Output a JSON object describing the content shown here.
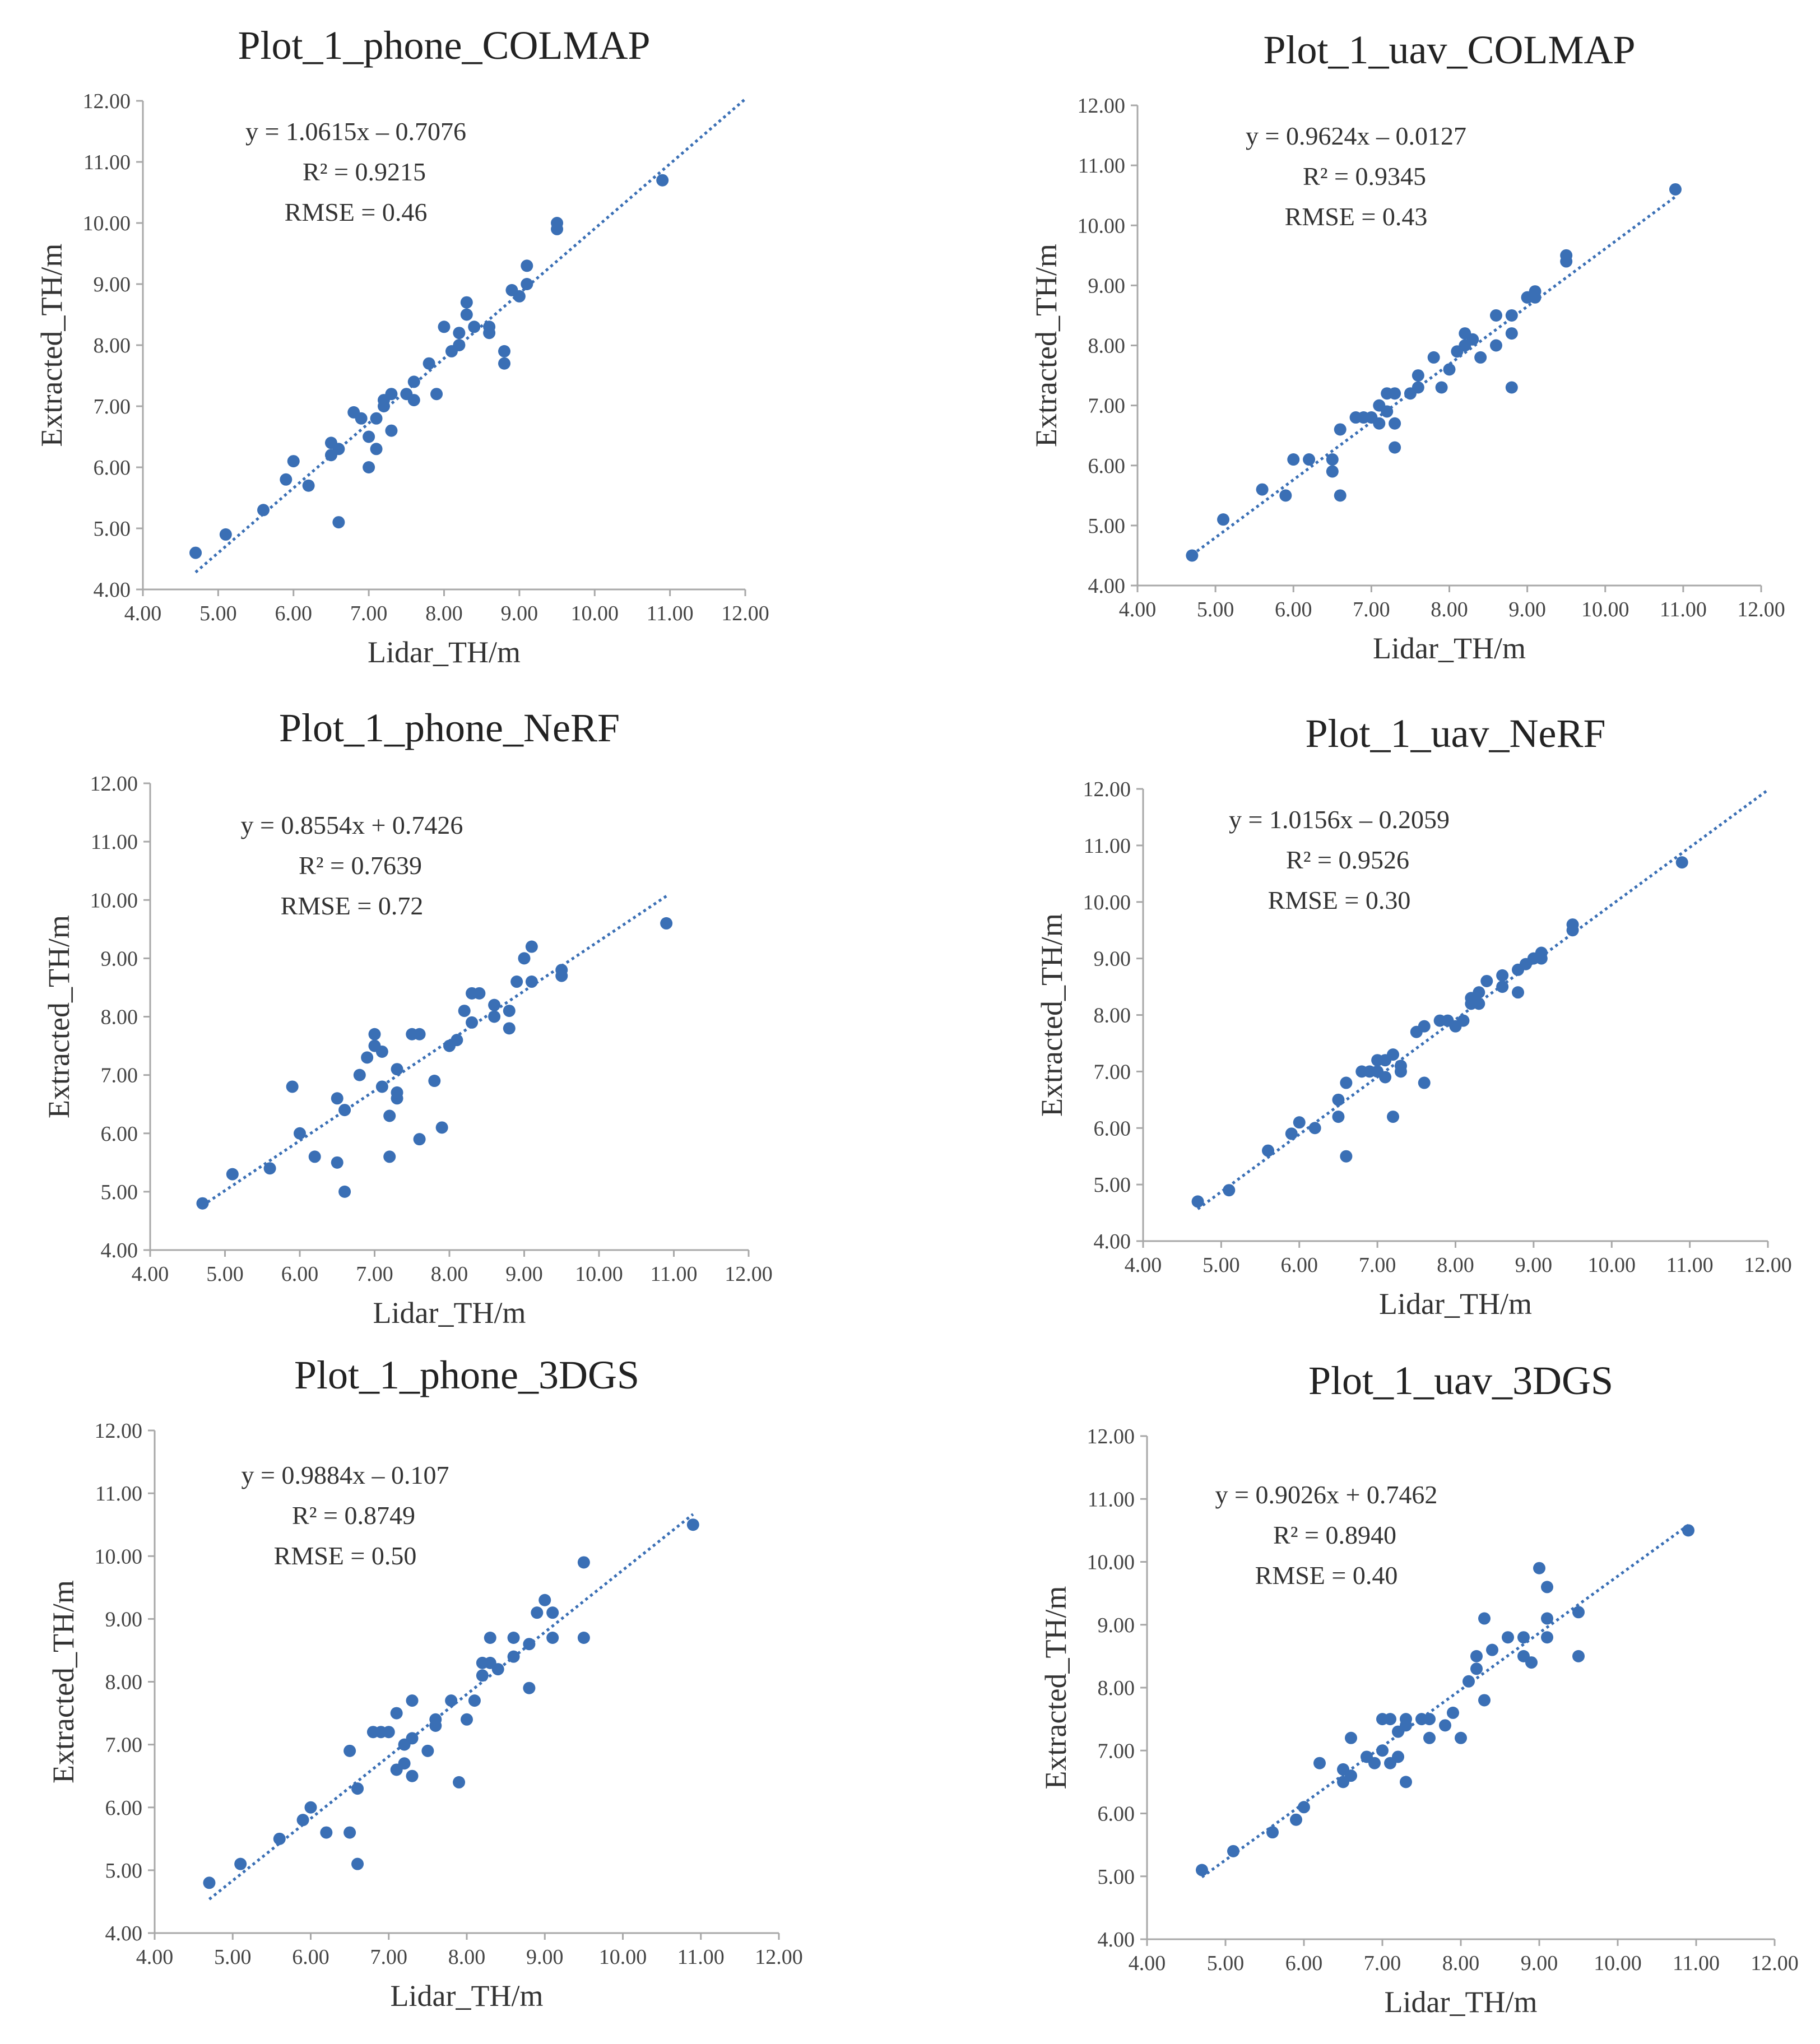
{
  "chart_data": [
    {
      "id": "phone_colmap",
      "type": "scatter",
      "title": "Plot_1_phone_COLMAP",
      "xlabel": "Lidar_TH/m",
      "ylabel": "Extracted_TH/m",
      "xlim": [
        4,
        12
      ],
      "ylim": [
        4,
        12
      ],
      "xticks": [
        "4.00",
        "5.00",
        "6.00",
        "7.00",
        "8.00",
        "9.00",
        "10.00",
        "11.00",
        "12.00"
      ],
      "yticks": [
        "4.00",
        "5.00",
        "6.00",
        "7.00",
        "8.00",
        "9.00",
        "10.00",
        "11.00",
        "12.00"
      ],
      "equation": "y = 1.0615x – 0.7076",
      "r2": "R² = 0.9215",
      "rmse": "RMSE = 0.46",
      "trendline": {
        "slope": 1.0615,
        "intercept": -0.7076,
        "x_range": [
          4.7,
          12
        ]
      },
      "points": [
        [
          4.7,
          4.6
        ],
        [
          5.1,
          4.9
        ],
        [
          5.6,
          5.3
        ],
        [
          5.9,
          5.8
        ],
        [
          6.0,
          6.1
        ],
        [
          6.2,
          5.7
        ],
        [
          6.5,
          6.4
        ],
        [
          6.5,
          6.2
        ],
        [
          6.6,
          6.3
        ],
        [
          6.6,
          5.1
        ],
        [
          6.8,
          6.9
        ],
        [
          6.9,
          6.8
        ],
        [
          7.0,
          6.5
        ],
        [
          7.0,
          6.0
        ],
        [
          7.1,
          6.8
        ],
        [
          7.1,
          6.3
        ],
        [
          7.2,
          7.0
        ],
        [
          7.2,
          7.1
        ],
        [
          7.3,
          7.2
        ],
        [
          7.3,
          6.6
        ],
        [
          7.5,
          7.2
        ],
        [
          7.6,
          7.4
        ],
        [
          7.6,
          7.1
        ],
        [
          7.8,
          7.7
        ],
        [
          7.9,
          7.2
        ],
        [
          8.0,
          8.3
        ],
        [
          8.1,
          7.9
        ],
        [
          8.2,
          8.0
        ],
        [
          8.2,
          8.2
        ],
        [
          8.3,
          8.5
        ],
        [
          8.3,
          8.7
        ],
        [
          8.4,
          8.3
        ],
        [
          8.6,
          8.3
        ],
        [
          8.6,
          8.2
        ],
        [
          8.8,
          7.9
        ],
        [
          8.8,
          7.7
        ],
        [
          8.9,
          8.9
        ],
        [
          9.0,
          8.8
        ],
        [
          9.1,
          9.0
        ],
        [
          9.1,
          9.3
        ],
        [
          9.5,
          10.0
        ],
        [
          9.5,
          9.9
        ],
        [
          10.9,
          10.7
        ]
      ]
    },
    {
      "id": "uav_colmap",
      "type": "scatter",
      "title": "Plot_1_uav_COLMAP",
      "xlabel": "Lidar_TH/m",
      "ylabel": "Extracted_TH/m",
      "xlim": [
        4,
        12
      ],
      "ylim": [
        4,
        12
      ],
      "xticks": [
        "4.00",
        "5.00",
        "6.00",
        "7.00",
        "8.00",
        "9.00",
        "10.00",
        "11.00",
        "12.00"
      ],
      "yticks": [
        "4.00",
        "5.00",
        "6.00",
        "7.00",
        "8.00",
        "9.00",
        "10.00",
        "11.00",
        "12.00"
      ],
      "equation": "y = 0.9624x – 0.0127",
      "r2": "R² = 0.9345",
      "rmse": "RMSE = 0.43",
      "trendline": {
        "slope": 0.9624,
        "intercept": -0.0127,
        "x_range": [
          4.7,
          10.9
        ]
      },
      "points": [
        [
          4.7,
          4.5
        ],
        [
          5.1,
          5.1
        ],
        [
          5.6,
          5.6
        ],
        [
          5.9,
          5.5
        ],
        [
          6.0,
          6.1
        ],
        [
          6.2,
          6.1
        ],
        [
          6.5,
          6.1
        ],
        [
          6.5,
          5.9
        ],
        [
          6.6,
          6.6
        ],
        [
          6.6,
          5.5
        ],
        [
          6.8,
          6.8
        ],
        [
          6.9,
          6.8
        ],
        [
          7.0,
          6.8
        ],
        [
          7.1,
          7.0
        ],
        [
          7.1,
          6.7
        ],
        [
          7.2,
          7.2
        ],
        [
          7.2,
          6.9
        ],
        [
          7.3,
          7.2
        ],
        [
          7.3,
          6.7
        ],
        [
          7.3,
          6.3
        ],
        [
          7.5,
          7.2
        ],
        [
          7.6,
          7.5
        ],
        [
          7.6,
          7.3
        ],
        [
          7.8,
          7.8
        ],
        [
          7.9,
          7.3
        ],
        [
          8.0,
          7.6
        ],
        [
          8.1,
          7.9
        ],
        [
          8.2,
          8.0
        ],
        [
          8.2,
          8.2
        ],
        [
          8.3,
          8.1
        ],
        [
          8.4,
          7.8
        ],
        [
          8.6,
          8.5
        ],
        [
          8.6,
          8.0
        ],
        [
          8.8,
          8.5
        ],
        [
          8.8,
          7.3
        ],
        [
          8.8,
          8.2
        ],
        [
          9.0,
          8.8
        ],
        [
          9.0,
          8.8
        ],
        [
          9.1,
          8.9
        ],
        [
          9.1,
          8.8
        ],
        [
          9.5,
          9.5
        ],
        [
          9.5,
          9.4
        ],
        [
          10.9,
          10.6
        ]
      ]
    },
    {
      "id": "phone_nerf",
      "type": "scatter",
      "title": "Plot_1_phone_NeRF",
      "xlabel": "Lidar_TH/m",
      "ylabel": "Extracted_TH/m",
      "xlim": [
        4,
        12
      ],
      "ylim": [
        4,
        12
      ],
      "xticks": [
        "4.00",
        "5.00",
        "6.00",
        "7.00",
        "8.00",
        "9.00",
        "10.00",
        "11.00",
        "12.00"
      ],
      "yticks": [
        "4.00",
        "5.00",
        "6.00",
        "7.00",
        "8.00",
        "9.00",
        "10.00",
        "11.00",
        "12.00"
      ],
      "equation": "y = 0.8554x  + 0.7426",
      "r2": "R² = 0.7639",
      "rmse": "RMSE = 0.72",
      "trendline": {
        "slope": 0.8554,
        "intercept": 0.7426,
        "x_range": [
          4.7,
          10.9
        ]
      },
      "points": [
        [
          4.7,
          4.8
        ],
        [
          5.1,
          5.3
        ],
        [
          5.6,
          5.4
        ],
        [
          5.9,
          6.8
        ],
        [
          6.0,
          6.0
        ],
        [
          6.2,
          5.6
        ],
        [
          6.5,
          6.6
        ],
        [
          6.5,
          5.5
        ],
        [
          6.6,
          6.4
        ],
        [
          6.6,
          5.0
        ],
        [
          6.8,
          7.0
        ],
        [
          6.9,
          7.3
        ],
        [
          7.0,
          7.7
        ],
        [
          7.0,
          7.5
        ],
        [
          7.1,
          7.4
        ],
        [
          7.1,
          6.8
        ],
        [
          7.2,
          6.3
        ],
        [
          7.2,
          5.6
        ],
        [
          7.3,
          6.6
        ],
        [
          7.3,
          6.7
        ],
        [
          7.3,
          7.1
        ],
        [
          7.5,
          7.7
        ],
        [
          7.6,
          7.7
        ],
        [
          7.6,
          5.9
        ],
        [
          7.8,
          6.9
        ],
        [
          7.9,
          6.1
        ],
        [
          8.0,
          7.5
        ],
        [
          8.1,
          7.6
        ],
        [
          8.2,
          8.1
        ],
        [
          8.3,
          7.9
        ],
        [
          8.3,
          8.4
        ],
        [
          8.4,
          8.4
        ],
        [
          8.6,
          8.2
        ],
        [
          8.6,
          8.0
        ],
        [
          8.8,
          7.8
        ],
        [
          8.8,
          8.1
        ],
        [
          8.9,
          8.6
        ],
        [
          9.0,
          9.0
        ],
        [
          9.1,
          9.2
        ],
        [
          9.1,
          8.6
        ],
        [
          9.5,
          8.8
        ],
        [
          9.5,
          8.7
        ],
        [
          10.9,
          9.6
        ]
      ]
    },
    {
      "id": "uav_nerf",
      "type": "scatter",
      "title": "Plot_1_uav_NeRF",
      "xlabel": "Lidar_TH/m",
      "ylabel": "Extracted_TH/m",
      "xlim": [
        4,
        12
      ],
      "ylim": [
        4,
        12
      ],
      "xticks": [
        "4.00",
        "5.00",
        "6.00",
        "7.00",
        "8.00",
        "9.00",
        "10.00",
        "11.00",
        "12.00"
      ],
      "yticks": [
        "4.00",
        "5.00",
        "6.00",
        "7.00",
        "8.00",
        "9.00",
        "10.00",
        "11.00",
        "12.00"
      ],
      "equation": "y = 1.0156x – 0.2059",
      "r2": "R² = 0.9526",
      "rmse": "RMSE = 0.30",
      "trendline": {
        "slope": 1.0156,
        "intercept": -0.2059,
        "x_range": [
          4.7,
          12
        ]
      },
      "points": [
        [
          4.7,
          4.7
        ],
        [
          5.1,
          4.9
        ],
        [
          5.6,
          5.6
        ],
        [
          5.9,
          5.9
        ],
        [
          6.0,
          6.1
        ],
        [
          6.2,
          6.0
        ],
        [
          6.5,
          6.5
        ],
        [
          6.5,
          6.2
        ],
        [
          6.6,
          6.8
        ],
        [
          6.6,
          5.5
        ],
        [
          6.8,
          7.0
        ],
        [
          6.9,
          7.0
        ],
        [
          7.0,
          7.2
        ],
        [
          7.0,
          7.0
        ],
        [
          7.1,
          6.9
        ],
        [
          7.1,
          7.2
        ],
        [
          7.2,
          7.3
        ],
        [
          7.2,
          6.2
        ],
        [
          7.3,
          7.1
        ],
        [
          7.3,
          7.0
        ],
        [
          7.5,
          7.7
        ],
        [
          7.6,
          7.8
        ],
        [
          7.6,
          6.8
        ],
        [
          7.8,
          7.9
        ],
        [
          7.9,
          7.9
        ],
        [
          8.0,
          7.8
        ],
        [
          8.1,
          7.9
        ],
        [
          8.2,
          8.3
        ],
        [
          8.2,
          8.2
        ],
        [
          8.3,
          8.4
        ],
        [
          8.3,
          8.2
        ],
        [
          8.4,
          8.6
        ],
        [
          8.6,
          8.7
        ],
        [
          8.6,
          8.5
        ],
        [
          8.8,
          8.8
        ],
        [
          8.8,
          8.4
        ],
        [
          8.9,
          8.9
        ],
        [
          9.0,
          9.0
        ],
        [
          9.1,
          9.1
        ],
        [
          9.1,
          9.0
        ],
        [
          9.5,
          9.6
        ],
        [
          9.5,
          9.5
        ],
        [
          10.9,
          10.7
        ]
      ]
    },
    {
      "id": "phone_3dgs",
      "type": "scatter",
      "title": "Plot_1_phone_3DGS",
      "xlabel": "Lidar_TH/m",
      "ylabel": "Extracted_TH/m",
      "xlim": [
        4,
        12
      ],
      "ylim": [
        4,
        12
      ],
      "xticks": [
        "4.00",
        "5.00",
        "6.00",
        "7.00",
        "8.00",
        "9.00",
        "10.00",
        "11.00",
        "12.00"
      ],
      "yticks": [
        "4.00",
        "5.00",
        "6.00",
        "7.00",
        "8.00",
        "9.00",
        "10.00",
        "11.00",
        "12.00"
      ],
      "equation": "y = 0.9884x – 0.107",
      "r2": "R² = 0.8749",
      "rmse": "RMSE = 0.50",
      "trendline": {
        "slope": 0.9884,
        "intercept": -0.107,
        "x_range": [
          4.7,
          10.9
        ]
      },
      "points": [
        [
          4.7,
          4.8
        ],
        [
          5.1,
          5.1
        ],
        [
          5.6,
          5.5
        ],
        [
          5.9,
          5.8
        ],
        [
          6.0,
          6.0
        ],
        [
          6.2,
          5.6
        ],
        [
          6.5,
          6.9
        ],
        [
          6.5,
          5.6
        ],
        [
          6.6,
          6.3
        ],
        [
          6.6,
          5.1
        ],
        [
          6.8,
          7.2
        ],
        [
          6.9,
          7.2
        ],
        [
          7.0,
          7.2
        ],
        [
          7.1,
          6.6
        ],
        [
          7.1,
          7.5
        ],
        [
          7.2,
          7.0
        ],
        [
          7.2,
          6.7
        ],
        [
          7.3,
          7.7
        ],
        [
          7.3,
          7.1
        ],
        [
          7.3,
          6.5
        ],
        [
          7.5,
          6.9
        ],
        [
          7.6,
          7.3
        ],
        [
          7.6,
          7.4
        ],
        [
          7.8,
          7.7
        ],
        [
          7.9,
          6.4
        ],
        [
          8.0,
          7.4
        ],
        [
          8.1,
          7.7
        ],
        [
          8.2,
          8.3
        ],
        [
          8.2,
          8.1
        ],
        [
          8.3,
          8.7
        ],
        [
          8.3,
          8.3
        ],
        [
          8.4,
          8.2
        ],
        [
          8.6,
          8.4
        ],
        [
          8.6,
          8.7
        ],
        [
          8.8,
          8.6
        ],
        [
          8.8,
          7.9
        ],
        [
          8.9,
          9.1
        ],
        [
          9.0,
          9.3
        ],
        [
          9.1,
          9.1
        ],
        [
          9.1,
          8.7
        ],
        [
          9.5,
          9.9
        ],
        [
          9.5,
          8.7
        ],
        [
          10.9,
          10.5
        ]
      ]
    },
    {
      "id": "uav_3dgs",
      "type": "scatter",
      "title": "Plot_1_uav_3DGS",
      "xlabel": "Lidar_TH/m",
      "ylabel": "Extracted_TH/m",
      "xlim": [
        4,
        12
      ],
      "ylim": [
        4,
        12
      ],
      "xticks": [
        "4.00",
        "5.00",
        "6.00",
        "7.00",
        "8.00",
        "9.00",
        "10.00",
        "11.00",
        "12.00"
      ],
      "yticks": [
        "4.00",
        "5.00",
        "6.00",
        "7.00",
        "8.00",
        "9.00",
        "10.00",
        "11.00",
        "12.00"
      ],
      "equation": "y = 0.9026x  + 0.7462",
      "r2": "R² = 0.8940",
      "rmse": "RMSE = 0.40",
      "trendline": {
        "slope": 0.9026,
        "intercept": 0.7462,
        "x_range": [
          4.7,
          10.9
        ]
      },
      "points": [
        [
          4.7,
          5.1
        ],
        [
          5.1,
          5.4
        ],
        [
          5.6,
          5.7
        ],
        [
          5.9,
          5.9
        ],
        [
          6.0,
          6.1
        ],
        [
          6.2,
          6.8
        ],
        [
          6.5,
          6.5
        ],
        [
          6.5,
          6.7
        ],
        [
          6.6,
          6.6
        ],
        [
          6.6,
          7.2
        ],
        [
          6.8,
          6.9
        ],
        [
          6.9,
          6.8
        ],
        [
          7.0,
          7.5
        ],
        [
          7.0,
          7.0
        ],
        [
          7.1,
          7.5
        ],
        [
          7.1,
          6.8
        ],
        [
          7.2,
          7.3
        ],
        [
          7.2,
          6.9
        ],
        [
          7.3,
          7.4
        ],
        [
          7.3,
          7.5
        ],
        [
          7.3,
          6.5
        ],
        [
          7.5,
          7.5
        ],
        [
          7.6,
          7.2
        ],
        [
          7.6,
          7.5
        ],
        [
          7.8,
          7.4
        ],
        [
          7.9,
          7.6
        ],
        [
          8.0,
          7.2
        ],
        [
          8.1,
          8.1
        ],
        [
          8.2,
          8.3
        ],
        [
          8.2,
          8.5
        ],
        [
          8.3,
          9.1
        ],
        [
          8.3,
          7.8
        ],
        [
          8.4,
          8.6
        ],
        [
          8.6,
          8.8
        ],
        [
          8.8,
          8.8
        ],
        [
          8.8,
          8.5
        ],
        [
          8.9,
          8.4
        ],
        [
          9.0,
          9.9
        ],
        [
          9.1,
          9.6
        ],
        [
          9.1,
          9.1
        ],
        [
          9.1,
          8.8
        ],
        [
          9.5,
          9.2
        ],
        [
          9.5,
          8.5
        ],
        [
          10.9,
          10.5
        ]
      ]
    }
  ],
  "style": {
    "marker_color": "#3a6fb5",
    "trendline_color": "#3a6fb5",
    "axis_color": "#a8a8a8",
    "text_color": "#333333"
  }
}
